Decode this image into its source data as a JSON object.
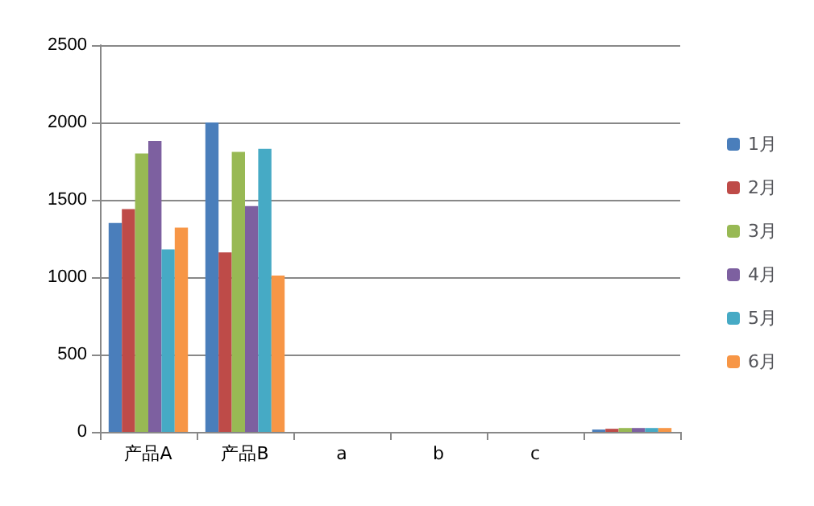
{
  "chart_data": {
    "type": "bar",
    "categories": [
      "产品A",
      "产品B",
      "a",
      "b",
      "c",
      null
    ],
    "series": [
      {
        "name": "1月",
        "color": "#4a7ebb",
        "values": [
          1350,
          2000,
          0,
          0,
          0,
          15
        ]
      },
      {
        "name": "2月",
        "color": "#be4b48",
        "values": [
          1440,
          1160,
          0,
          0,
          0,
          20
        ]
      },
      {
        "name": "3月",
        "color": "#98b954",
        "values": [
          1800,
          1810,
          0,
          0,
          0,
          25
        ]
      },
      {
        "name": "4月",
        "color": "#7d60a0",
        "values": [
          1880,
          1460,
          0,
          0,
          0,
          25
        ]
      },
      {
        "name": "5月",
        "color": "#46aac5",
        "values": [
          1180,
          1830,
          0,
          0,
          0,
          25
        ]
      },
      {
        "name": "6月",
        "color": "#f79646",
        "values": [
          1320,
          1010,
          0,
          0,
          0,
          25
        ]
      }
    ],
    "ylim": [
      0,
      2500
    ],
    "yticks": [
      0,
      500,
      1000,
      1500,
      2000,
      2500
    ],
    "grid": "y",
    "legend": "right"
  }
}
